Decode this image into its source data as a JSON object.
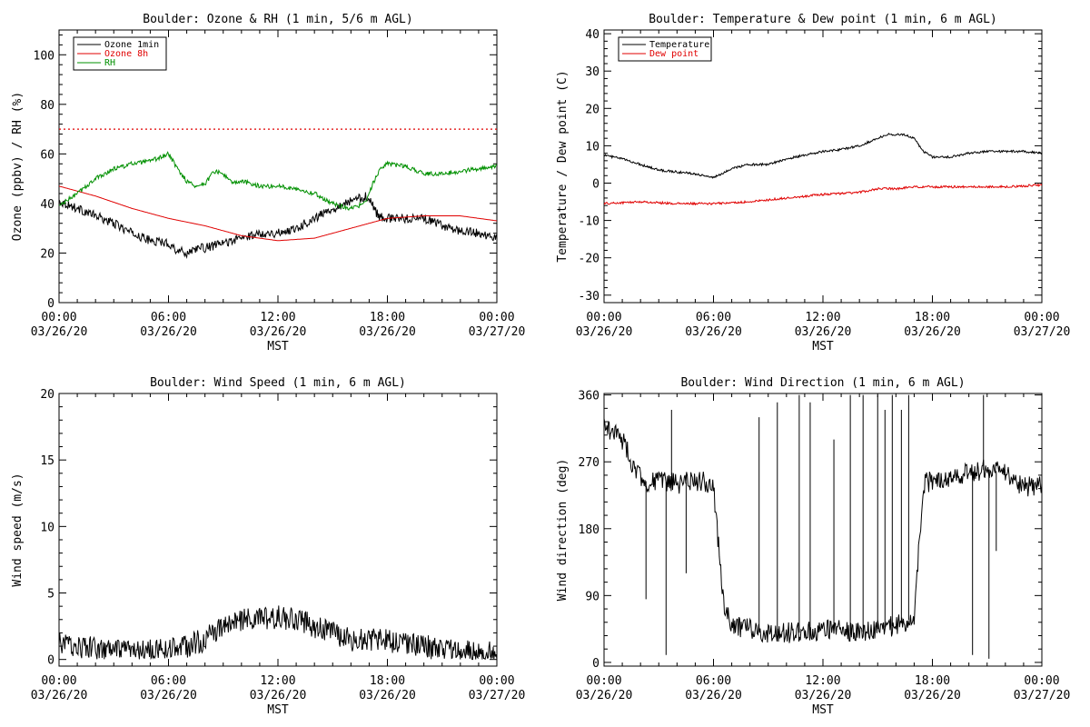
{
  "panels": {
    "ozone": {
      "title": "Boulder: Ozone & RH (1 min, 5/6 m AGL)",
      "ylabel": "Ozone (ppbv) / RH (%)",
      "xlabel": "MST",
      "legend": [
        "Ozone 1min",
        "Ozone 8h",
        "RH"
      ]
    },
    "temp": {
      "title": "Boulder: Temperature & Dew point (1 min, 6 m AGL)",
      "ylabel": "Temperature / Dew point (C)",
      "xlabel": "MST",
      "legend": [
        "Temperature",
        "Dew point"
      ]
    },
    "wspd": {
      "title": "Boulder: Wind Speed (1 min, 6 m AGL)",
      "ylabel": "Wind speed (m/s)",
      "xlabel": "MST"
    },
    "wdir": {
      "title": "Boulder: Wind Direction (1 min, 6 m AGL)",
      "ylabel": "Wind direction (deg)",
      "xlabel": "MST"
    }
  },
  "chart_data": [
    {
      "id": "ozone",
      "type": "line",
      "title": "Boulder: Ozone & RH (1 min, 5/6 m AGL)",
      "xlabel": "MST",
      "ylabel": "Ozone (ppbv) / RH (%)",
      "xlim": [
        0,
        24
      ],
      "ylim": [
        0,
        110
      ],
      "x_ticks": [
        {
          "hour": 0,
          "time": "00:00",
          "date": "03/26/20"
        },
        {
          "hour": 6,
          "time": "06:00",
          "date": "03/26/20"
        },
        {
          "hour": 12,
          "time": "12:00",
          "date": "03/26/20"
        },
        {
          "hour": 18,
          "time": "18:00",
          "date": "03/26/20"
        },
        {
          "hour": 24,
          "time": "00:00",
          "date": "03/27/20"
        }
      ],
      "y_ticks": [
        0,
        20,
        40,
        60,
        80,
        100
      ],
      "legend_position": "top-left",
      "reference_line": {
        "y": 70,
        "color": "#e00000",
        "style": "dotted"
      },
      "series": [
        {
          "name": "Ozone 1min",
          "color": "#000000",
          "noise": 1.8,
          "x": [
            0,
            1,
            2,
            3,
            4,
            5,
            6,
            6.5,
            7,
            7.5,
            8,
            9,
            10,
            11,
            12,
            13,
            14,
            15,
            16,
            16.9,
            17.5,
            18,
            19,
            20,
            21,
            22,
            23,
            24
          ],
          "y": [
            41,
            38,
            35,
            32,
            28,
            25,
            24,
            21,
            20,
            22,
            22,
            24,
            26,
            28,
            28,
            30,
            34,
            38,
            41,
            43,
            35,
            34,
            34,
            34,
            31,
            29,
            28,
            26
          ]
        },
        {
          "name": "Ozone 8h",
          "color": "#e00000",
          "noise": 0,
          "x": [
            0,
            2,
            4,
            6,
            8,
            10,
            12,
            14,
            16,
            18,
            20,
            22,
            24
          ],
          "y": [
            47,
            43,
            38,
            34,
            31,
            27,
            25,
            26,
            30,
            34,
            35,
            35,
            33
          ]
        },
        {
          "name": "RH",
          "color": "#009000",
          "noise": 0.9,
          "x": [
            0,
            1,
            2,
            3,
            4,
            5,
            6,
            6.5,
            7,
            7.5,
            8,
            8.5,
            9,
            9.5,
            10,
            11,
            12,
            13,
            14,
            15,
            16,
            16.8,
            17.2,
            17.6,
            18,
            19,
            20,
            21,
            22,
            23,
            24
          ],
          "y": [
            39,
            44,
            50,
            54,
            56,
            57,
            60,
            54,
            49,
            47,
            48,
            53,
            52,
            48,
            49,
            47,
            47,
            46,
            44,
            40,
            38,
            40,
            48,
            54,
            56,
            55,
            52,
            52,
            53,
            54,
            55
          ]
        }
      ]
    },
    {
      "id": "temp",
      "type": "line",
      "title": "Boulder: Temperature & Dew point (1 min, 6 m AGL)",
      "xlabel": "MST",
      "ylabel": "Temperature / Dew point (C)",
      "xlim": [
        0,
        24
      ],
      "ylim": [
        -32,
        41
      ],
      "x_ticks": [
        {
          "hour": 0,
          "time": "00:00",
          "date": "03/26/20"
        },
        {
          "hour": 6,
          "time": "06:00",
          "date": "03/26/20"
        },
        {
          "hour": 12,
          "time": "12:00",
          "date": "03/26/20"
        },
        {
          "hour": 18,
          "time": "18:00",
          "date": "03/26/20"
        },
        {
          "hour": 24,
          "time": "00:00",
          "date": "03/27/20"
        }
      ],
      "y_ticks": [
        -30,
        -20,
        -10,
        0,
        10,
        20,
        30,
        40
      ],
      "legend_position": "top-left",
      "series": [
        {
          "name": "Temperature",
          "color": "#000000",
          "noise": 0.3,
          "x": [
            0,
            1,
            2,
            3,
            4,
            5,
            6,
            6.5,
            7,
            8,
            9,
            10,
            11,
            12,
            13,
            14,
            15,
            15.5,
            16,
            16.5,
            17,
            17.5,
            18,
            19,
            20,
            21,
            22,
            23,
            24
          ],
          "y": [
            7.5,
            6.5,
            5,
            3.5,
            3,
            2.5,
            1.5,
            2.5,
            4,
            5,
            5,
            6.5,
            7.5,
            8.5,
            9,
            10,
            12,
            13,
            13,
            13,
            12,
            8.5,
            7,
            7,
            8,
            8.5,
            8.5,
            8.5,
            8
          ]
        },
        {
          "name": "Dew point",
          "color": "#e00000",
          "noise": 0.3,
          "x": [
            0,
            2,
            4,
            6,
            8,
            10,
            12,
            14,
            15,
            16,
            17,
            18,
            20,
            22,
            24
          ],
          "y": [
            -5.5,
            -5,
            -5.5,
            -5.5,
            -5,
            -4,
            -3,
            -2.5,
            -1.5,
            -1.5,
            -1,
            -1,
            -1,
            -1,
            -0.5
          ]
        }
      ]
    },
    {
      "id": "wspd",
      "type": "line",
      "title": "Boulder: Wind Speed (1 min, 6 m AGL)",
      "xlabel": "MST",
      "ylabel": "Wind speed (m/s)",
      "xlim": [
        0,
        24
      ],
      "ylim": [
        -0.5,
        20
      ],
      "x_ticks": [
        {
          "hour": 0,
          "time": "00:00",
          "date": "03/26/20"
        },
        {
          "hour": 6,
          "time": "06:00",
          "date": "03/26/20"
        },
        {
          "hour": 12,
          "time": "12:00",
          "date": "03/26/20"
        },
        {
          "hour": 18,
          "time": "18:00",
          "date": "03/26/20"
        },
        {
          "hour": 24,
          "time": "00:00",
          "date": "03/27/20"
        }
      ],
      "y_ticks": [
        0,
        5,
        10,
        15,
        20
      ],
      "series": [
        {
          "name": "",
          "color": "#000000",
          "noise": 0.9,
          "floor": 0,
          "x": [
            0,
            1,
            2,
            3,
            4,
            5,
            6,
            7,
            8,
            9,
            10,
            11,
            12,
            13,
            14,
            15,
            16,
            17,
            18,
            19,
            20,
            21,
            22,
            23,
            24
          ],
          "y": [
            1.2,
            1,
            0.8,
            0.6,
            0.5,
            0.6,
            0.8,
            1,
            1.5,
            2.5,
            3,
            3,
            3.2,
            3,
            2.5,
            2,
            1.5,
            1.5,
            1.4,
            1.3,
            1,
            0.8,
            0.6,
            0.5,
            0.5
          ]
        }
      ]
    },
    {
      "id": "wdir",
      "type": "line",
      "title": "Boulder: Wind Direction (1 min, 6 m AGL)",
      "xlabel": "MST",
      "ylabel": "Wind direction (deg)",
      "xlim": [
        0,
        24
      ],
      "ylim": [
        -5,
        362
      ],
      "x_ticks": [
        {
          "hour": 0,
          "time": "00:00",
          "date": "03/26/20"
        },
        {
          "hour": 6,
          "time": "06:00",
          "date": "03/26/20"
        },
        {
          "hour": 12,
          "time": "12:00",
          "date": "03/26/20"
        },
        {
          "hour": 18,
          "time": "18:00",
          "date": "03/26/20"
        },
        {
          "hour": 24,
          "time": "00:00",
          "date": "03/27/20"
        }
      ],
      "y_ticks": [
        0,
        90,
        180,
        270,
        360
      ],
      "series": [
        {
          "name": "",
          "color": "#000000",
          "noise": 14,
          "floor": 0,
          "ceil": 360,
          "x": [
            0,
            0.5,
            1,
            1.5,
            2,
            2.5,
            3,
            4,
            5,
            6,
            6.3,
            6.6,
            7,
            8,
            9,
            10,
            11,
            12,
            13,
            14,
            15,
            16,
            17,
            17.5,
            18,
            19,
            20,
            21,
            22,
            23,
            24
          ],
          "y": [
            320,
            310,
            300,
            270,
            250,
            240,
            245,
            240,
            245,
            240,
            150,
            70,
            50,
            45,
            40,
            40,
            40,
            45,
            45,
            40,
            45,
            50,
            60,
            240,
            245,
            250,
            255,
            260,
            255,
            235,
            240
          ]
        }
      ],
      "spikes": [
        {
          "x": 2.3,
          "y": 85
        },
        {
          "x": 3.4,
          "y": 10
        },
        {
          "x": 3.7,
          "y": 340
        },
        {
          "x": 4.5,
          "y": 120
        },
        {
          "x": 8.5,
          "y": 330
        },
        {
          "x": 9.5,
          "y": 350
        },
        {
          "x": 10.7,
          "y": 360
        },
        {
          "x": 11.3,
          "y": 350
        },
        {
          "x": 12.6,
          "y": 300
        },
        {
          "x": 13.5,
          "y": 360
        },
        {
          "x": 14.2,
          "y": 360
        },
        {
          "x": 15.0,
          "y": 360
        },
        {
          "x": 15.4,
          "y": 340
        },
        {
          "x": 15.8,
          "y": 360
        },
        {
          "x": 16.3,
          "y": 340
        },
        {
          "x": 16.7,
          "y": 360
        },
        {
          "x": 20.2,
          "y": 10
        },
        {
          "x": 20.8,
          "y": 360
        },
        {
          "x": 21.1,
          "y": 5
        },
        {
          "x": 21.5,
          "y": 150
        }
      ]
    }
  ]
}
